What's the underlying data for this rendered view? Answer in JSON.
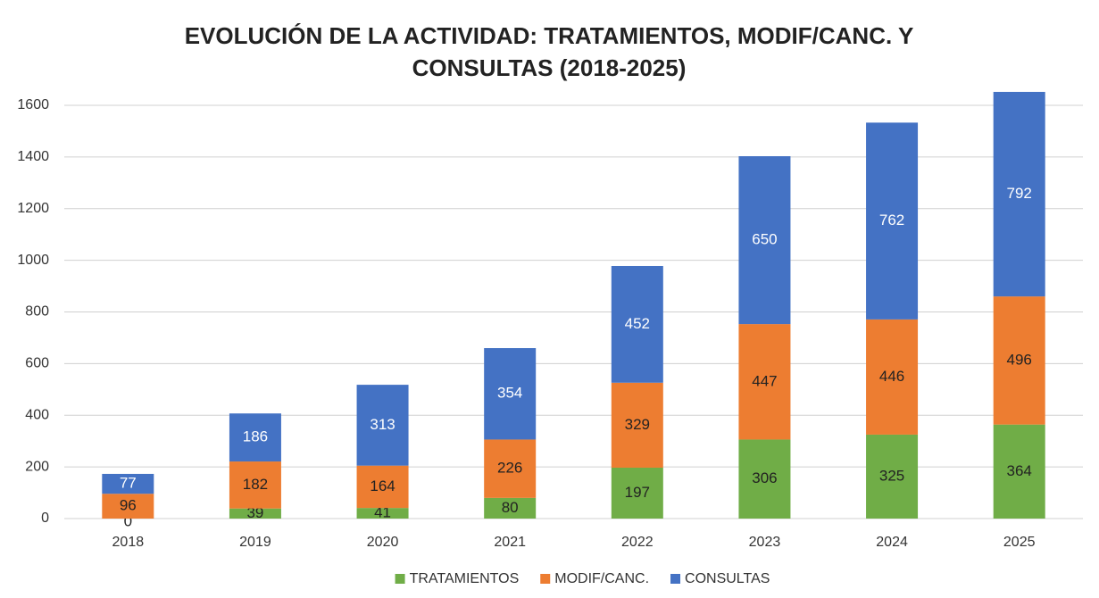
{
  "chart_data": {
    "type": "stacked_bar",
    "title": "EVOLUCIÓN DE LA ACTIVIDAD: TRATAMIENTOS, MODIF/CANC. Y CONSULTAS (2018-2025)",
    "categories": [
      "2018",
      "2019",
      "2020",
      "2021",
      "2022",
      "2023",
      "2024",
      "2025"
    ],
    "series": [
      {
        "name": "TRATAMIENTOS",
        "color": "#70ad47",
        "values": [
          0,
          39,
          41,
          80,
          197,
          306,
          325,
          364
        ]
      },
      {
        "name": "MODIF/CANC.",
        "color": "#ed7d31",
        "values": [
          96,
          182,
          164,
          226,
          329,
          447,
          446,
          496
        ]
      },
      {
        "name": "CONSULTAS",
        "color": "#4472c4",
        "values": [
          77,
          186,
          313,
          354,
          452,
          650,
          762,
          792
        ]
      }
    ],
    "ylim": [
      0,
      1600
    ],
    "yticks": [
      0,
      200,
      400,
      600,
      800,
      1000,
      1200,
      1400,
      1600
    ],
    "grid": true,
    "legend": "bottom"
  }
}
